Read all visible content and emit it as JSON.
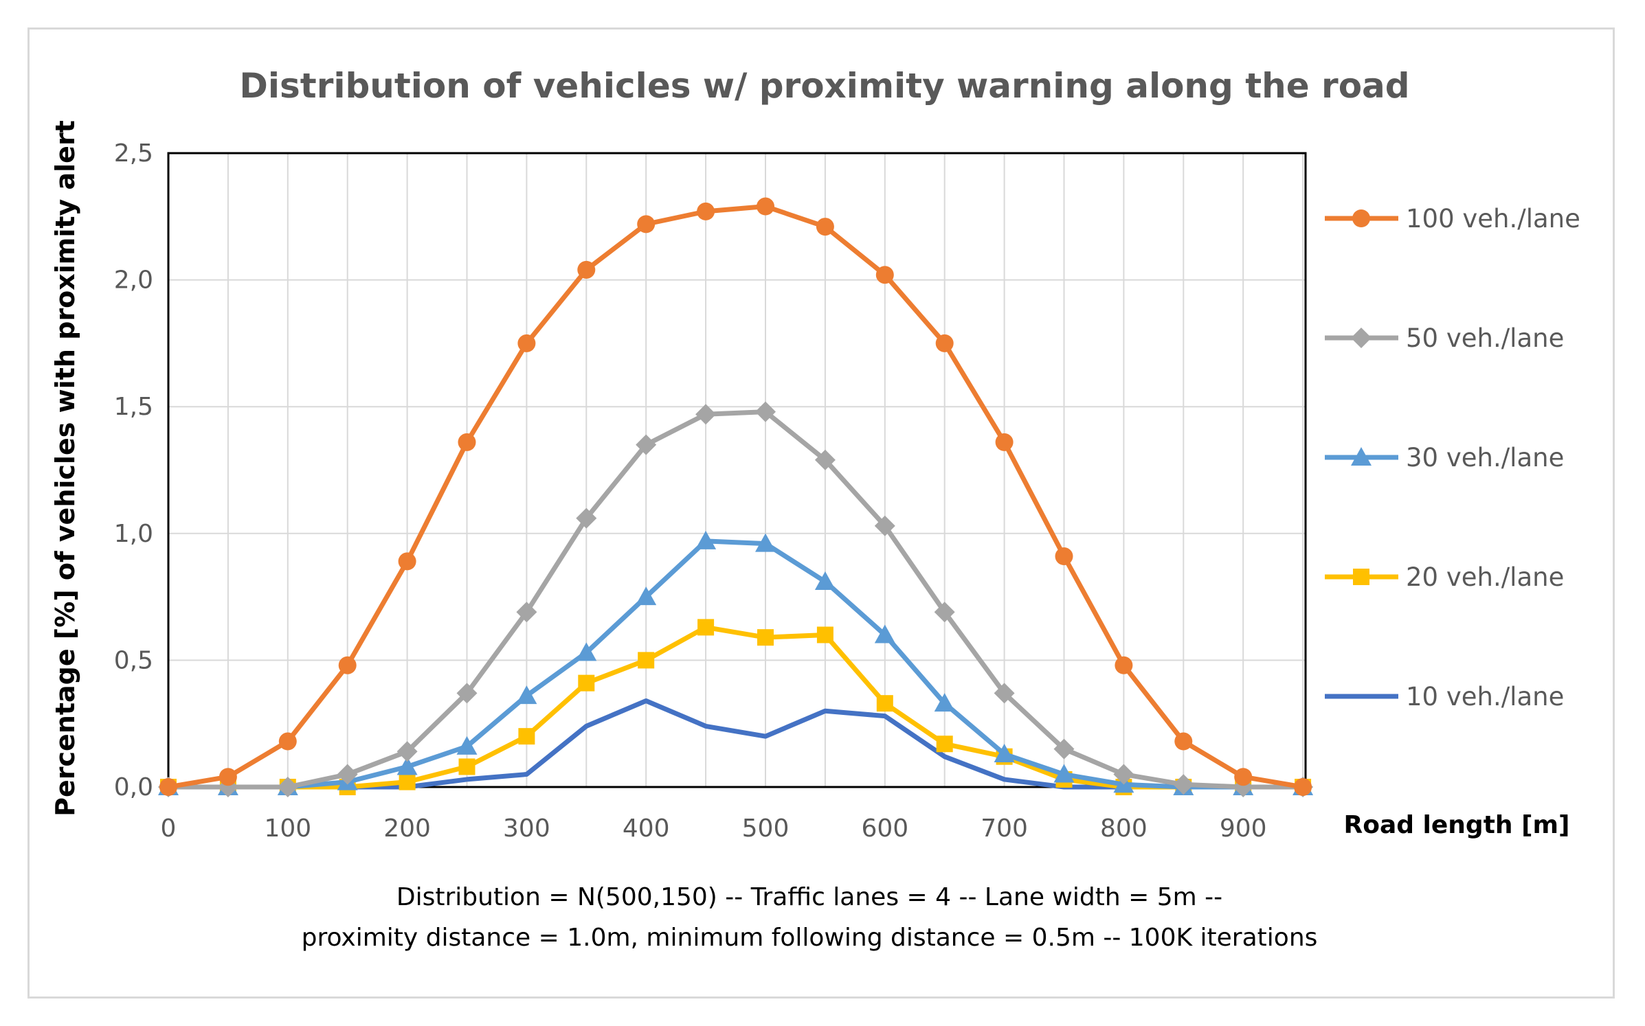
{
  "chart_data": {
    "type": "line",
    "title": "Distribution of vehicles w/ proximity warning along the road",
    "xlabel": "Road length [m]",
    "ylabel": "Percentage [%] of vehicles with proximity alert",
    "x": [
      0,
      50,
      100,
      150,
      200,
      250,
      300,
      350,
      400,
      450,
      500,
      550,
      600,
      650,
      700,
      750,
      800,
      850,
      900,
      950
    ],
    "xticks": [
      0,
      100,
      200,
      300,
      400,
      500,
      600,
      700,
      800,
      900
    ],
    "xtick_labels": [
      "0",
      "100",
      "200",
      "300",
      "400",
      "500",
      "600",
      "700",
      "800",
      "900"
    ],
    "xlim": [
      0,
      950
    ],
    "ylim": [
      0,
      2.5
    ],
    "yticks": [
      0,
      0.5,
      1.0,
      1.5,
      2.0,
      2.5
    ],
    "ytick_labels": [
      "0,0",
      "0,5",
      "1,0",
      "1,5",
      "2,0",
      "2,5"
    ],
    "grid": true,
    "legend_position": "right",
    "series": [
      {
        "name": "100 veh./lane",
        "color": "#ED7D31",
        "marker": "circle",
        "values": [
          0.0,
          0.04,
          0.18,
          0.48,
          0.89,
          1.36,
          1.75,
          2.04,
          2.22,
          2.27,
          2.29,
          2.21,
          2.02,
          1.75,
          1.36,
          0.91,
          0.48,
          0.18,
          0.04,
          0.0
        ]
      },
      {
        "name": "50 veh./lane",
        "color": "#A5A5A5",
        "marker": "diamond",
        "values": [
          0.0,
          0.0,
          0.0,
          0.05,
          0.14,
          0.37,
          0.69,
          1.06,
          1.35,
          1.47,
          1.48,
          1.29,
          1.03,
          0.69,
          0.37,
          0.15,
          0.05,
          0.01,
          0.0,
          0.0
        ]
      },
      {
        "name": "30 veh./lane",
        "color": "#5B9BD5",
        "marker": "triangle",
        "values": [
          0.0,
          0.0,
          0.0,
          0.02,
          0.08,
          0.16,
          0.36,
          0.53,
          0.75,
          0.97,
          0.96,
          0.81,
          0.6,
          0.33,
          0.13,
          0.05,
          0.01,
          0.0,
          0.0,
          0.0
        ]
      },
      {
        "name": "20 veh./lane",
        "color": "#FFC000",
        "marker": "square",
        "values": [
          0.0,
          0.0,
          0.0,
          0.0,
          0.02,
          0.08,
          0.2,
          0.41,
          0.5,
          0.63,
          0.59,
          0.6,
          0.33,
          0.17,
          0.12,
          0.03,
          0.0,
          0.0,
          0.0,
          0.0
        ]
      },
      {
        "name": "10 veh./lane",
        "color": "#4472C4",
        "marker": "none",
        "values": [
          0.0,
          0.0,
          0.0,
          0.0,
          0.0,
          0.03,
          0.05,
          0.24,
          0.34,
          0.24,
          0.2,
          0.3,
          0.28,
          0.12,
          0.03,
          0.0,
          0.0,
          0.0,
          0.0,
          0.0
        ]
      }
    ],
    "annotations": [
      "Distribution = N(500,150) -- Traffic lanes = 4 -- Lane width = 5m --",
      "proximity distance = 1.0m, minimum following distance = 0.5m -- 100K iterations"
    ]
  }
}
